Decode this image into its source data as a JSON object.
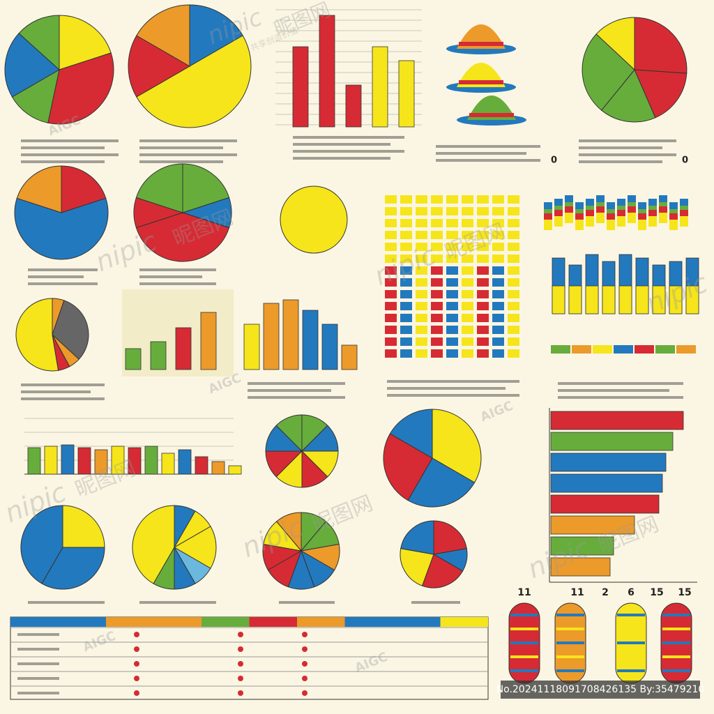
{
  "watermark": {
    "brand": "nipic",
    "name": "昵图网",
    "site": ".com",
    "tagline": "共享创造价值"
  },
  "badge": "AIGC",
  "footer": "No.20241118091708426135 By:35479210",
  "capsule_axis": [
    "11",
    "11",
    "2",
    "6",
    "15",
    "15"
  ],
  "markers": [
    "0",
    "0"
  ]
}
